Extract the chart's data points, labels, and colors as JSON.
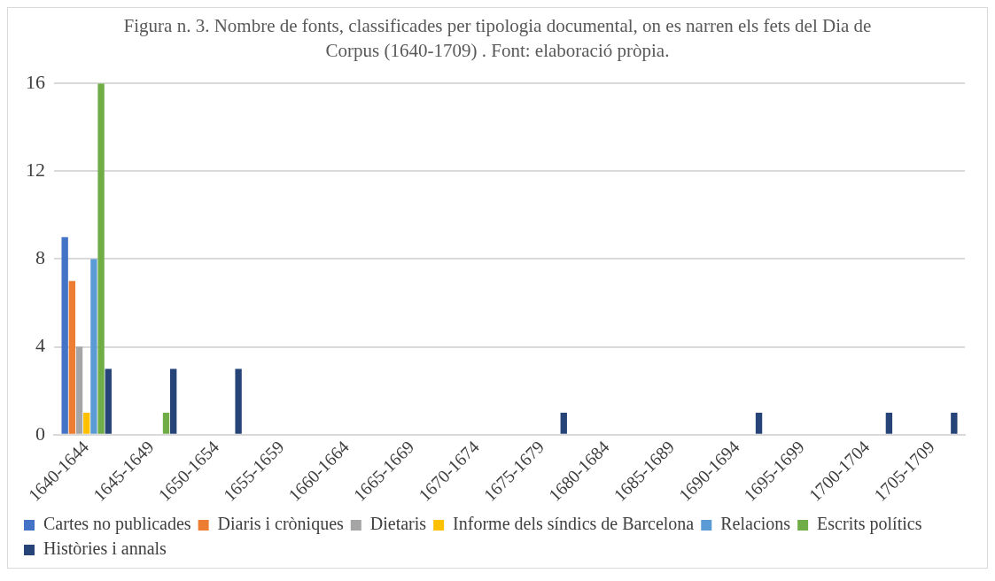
{
  "chart_data": {
    "type": "bar",
    "title": "Figura n. 3. Nombre de fonts, classificades per tipologia documental, on es narren els fets del Dia de Corpus (1640-1709) . Font: elaboració pròpia.",
    "categories": [
      "1640-1644",
      "1645-1649",
      "1650-1654",
      "1655-1659",
      "1660-1664",
      "1665-1669",
      "1670-1674",
      "1675-1679",
      "1680-1684",
      "1685-1689",
      "1690-1694",
      "1695-1699",
      "1700-1704",
      "1705-1709"
    ],
    "series": [
      {
        "name": "Cartes no publicades",
        "color": "#4472c4",
        "values": [
          9,
          0,
          0,
          0,
          0,
          0,
          0,
          0,
          0,
          0,
          0,
          0,
          0,
          0
        ]
      },
      {
        "name": "Diaris i cròniques",
        "color": "#ed7d31",
        "values": [
          7,
          0,
          0,
          0,
          0,
          0,
          0,
          0,
          0,
          0,
          0,
          0,
          0,
          0
        ]
      },
      {
        "name": "Dietaris",
        "color": "#a5a5a5",
        "values": [
          4,
          0,
          0,
          0,
          0,
          0,
          0,
          0,
          0,
          0,
          0,
          0,
          0,
          0
        ]
      },
      {
        "name": "Informe dels síndics de Barcelona",
        "color": "#ffc000",
        "values": [
          1,
          0,
          0,
          0,
          0,
          0,
          0,
          0,
          0,
          0,
          0,
          0,
          0,
          0
        ]
      },
      {
        "name": "Relacions",
        "color": "#5b9bd5",
        "values": [
          8,
          0,
          0,
          0,
          0,
          0,
          0,
          0,
          0,
          0,
          0,
          0,
          0,
          0
        ]
      },
      {
        "name": "Escrits polítics",
        "color": "#70ad47",
        "values": [
          16,
          1,
          0,
          0,
          0,
          0,
          0,
          0,
          0,
          0,
          0,
          0,
          0,
          0
        ]
      },
      {
        "name": "Històries i annals",
        "color": "#264478",
        "values": [
          3,
          3,
          3,
          0,
          0,
          0,
          0,
          1,
          0,
          0,
          1,
          0,
          1,
          1
        ]
      }
    ],
    "ylim": [
      0,
      16
    ],
    "yticks": [
      0,
      4,
      8,
      12,
      16
    ],
    "grid": "y",
    "legend": "bottom"
  }
}
